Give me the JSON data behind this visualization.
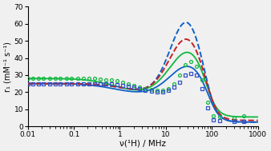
{
  "xlabel": "ν(¹H) / MHz",
  "ylabel": "r₁ (mM⁻¹ s⁻¹)",
  "ylim": [
    0,
    70
  ],
  "yticks": [
    0,
    10,
    20,
    30,
    40,
    50,
    60,
    70
  ],
  "colors": {
    "blue_dashed": "#1060C8",
    "red_dashed": "#C42020",
    "green_solid": "#10B840",
    "blue_solid": "#1060C8",
    "green_circles": "#10B840",
    "blue_squares": "#3050C8"
  },
  "gc_freq": [
    0.01,
    0.013,
    0.017,
    0.022,
    0.03,
    0.04,
    0.05,
    0.07,
    0.09,
    0.12,
    0.16,
    0.21,
    0.28,
    0.37,
    0.49,
    0.65,
    0.87,
    1.15,
    1.53,
    2.0,
    2.7,
    3.6,
    4.8,
    6.4,
    8.5,
    11.3,
    15,
    20,
    26,
    35,
    46,
    62,
    82,
    109,
    145,
    300,
    500
  ],
  "gc_r1": [
    28,
    28,
    28,
    28,
    28,
    28,
    28,
    28,
    28,
    28,
    28,
    28,
    28,
    27.5,
    27,
    27,
    26.5,
    26,
    25,
    24,
    23,
    22,
    21.5,
    21,
    21,
    22,
    25,
    30,
    36,
    38,
    35,
    27,
    14,
    6,
    5.5,
    5,
    6
  ],
  "bs_freq": [
    0.01,
    0.013,
    0.017,
    0.022,
    0.03,
    0.04,
    0.05,
    0.07,
    0.09,
    0.12,
    0.16,
    0.21,
    0.28,
    0.37,
    0.49,
    0.65,
    0.87,
    1.15,
    1.53,
    2.0,
    2.7,
    3.6,
    4.8,
    6.4,
    8.5,
    11.3,
    15,
    20,
    26,
    35,
    46,
    62,
    82,
    109,
    145,
    300,
    500
  ],
  "bs_r1": [
    25,
    25,
    25,
    25,
    25,
    25,
    25,
    25,
    25,
    25,
    25,
    25,
    25,
    25,
    25,
    25,
    24.5,
    24,
    23.5,
    23,
    22,
    21,
    20.5,
    20,
    20,
    21,
    23,
    26,
    30,
    31,
    30,
    22,
    11,
    4,
    3.5,
    3,
    3
  ],
  "bg_color": "#f0f0f0"
}
